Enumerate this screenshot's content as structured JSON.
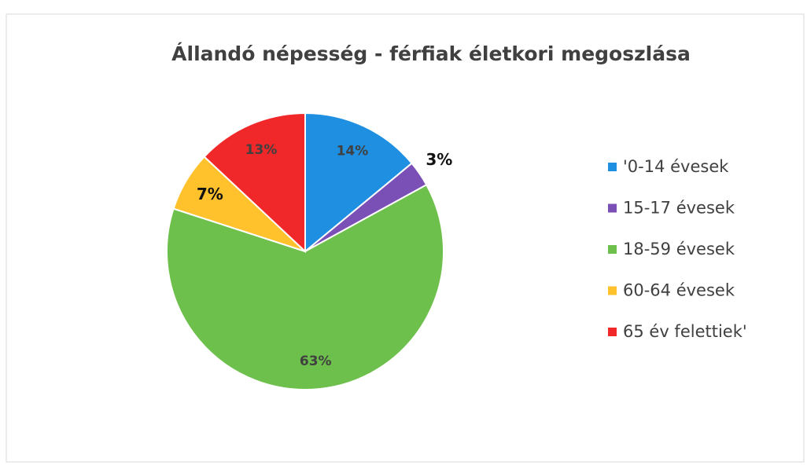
{
  "chart_data": {
    "type": "pie",
    "title": "Állandó népesség - férfiak életkori megoszlása",
    "categories": [
      "'0-14 évesek",
      "15-17 évesek",
      "18-59 évesek",
      "60-64 évesek",
      "65 év felettiek'"
    ],
    "values": [
      14,
      3,
      63,
      7,
      13
    ],
    "value_labels": [
      "14%",
      "3%",
      "63%",
      "7%",
      "13%"
    ],
    "colors": [
      "#1e8fe1",
      "#7a4fb6",
      "#6dc04b",
      "#ffc22d",
      "#f1282a"
    ],
    "legend": "right"
  }
}
